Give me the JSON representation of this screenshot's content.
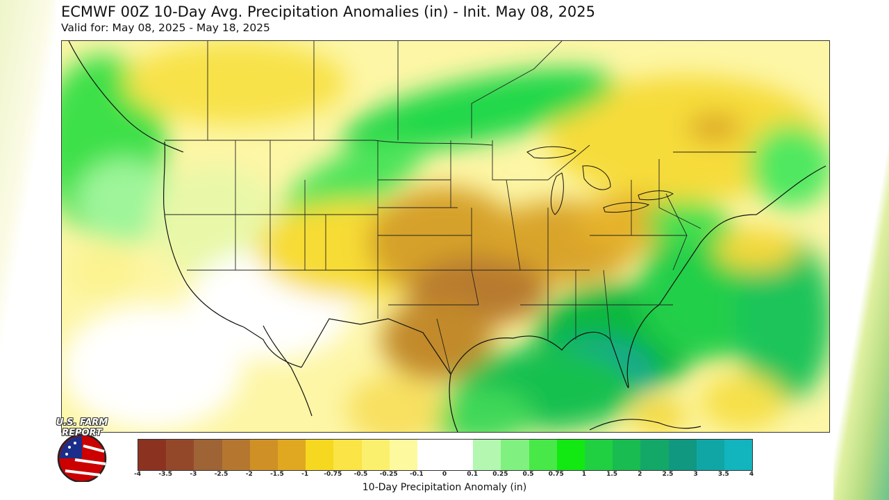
{
  "header": {
    "title": "ECMWF 00Z 10-Day Avg. Precipitation Anomalies (in) - Init. May 08, 2025",
    "subtitle": "Valid for: May 08, 2025 - May 18, 2025"
  },
  "colorbar": {
    "label": "10-Day Precipitation Anomaly (in)",
    "ticks": [
      "-4",
      "-3.5",
      "-3",
      "-2.5",
      "-2",
      "-1.5",
      "-1",
      "-0.75",
      "-0.5",
      "-0.25",
      "-0.1",
      "0",
      "0.1",
      "0.25",
      "0.5",
      "0.75",
      "1",
      "1.5",
      "2",
      "2.5",
      "3",
      "3.5",
      "4"
    ],
    "colors": [
      "#8b3320",
      "#94482a",
      "#9e6436",
      "#b5772f",
      "#cf9126",
      "#e0a820",
      "#f5d81f",
      "#fae446",
      "#fbf06e",
      "#fdf99e",
      "#ffffff",
      "#ffffff",
      "#b4f7b0",
      "#80f080",
      "#48e848",
      "#12e812",
      "#20d040",
      "#18bc50",
      "#14a868",
      "#109880",
      "#10a6a6",
      "#12b4be"
    ]
  },
  "logo": {
    "line1": "U.S. FARM",
    "line2": "REPORT"
  }
}
